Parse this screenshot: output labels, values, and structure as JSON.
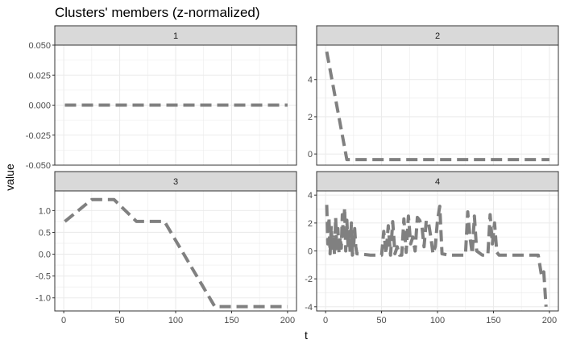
{
  "chart_data": {
    "type": "line",
    "title": "Clusters' members (z-normalized)",
    "xlabel": "t",
    "ylabel": "value",
    "xlim": [
      -8,
      208
    ],
    "x_ticks": [
      0,
      50,
      100,
      150,
      200
    ],
    "line_color": "#808080",
    "line_style": "dashed",
    "panel_border_color": "#333333",
    "strip_fill": "#d9d9d9",
    "grid_color": "#ebebeb",
    "panels": [
      {
        "label": "1",
        "ylim": [
          -0.05,
          0.05
        ],
        "y_ticks": [
          0.05,
          0.025,
          0.0,
          -0.025,
          -0.05
        ],
        "y_tick_labels": [
          "0.050",
          "0.025",
          "0.000",
          "-0.025",
          "-0.050"
        ],
        "x": [
          1,
          200
        ],
        "y": [
          0,
          0
        ]
      },
      {
        "label": "2",
        "ylim": [
          -0.6,
          5.85
        ],
        "y_ticks": [
          0,
          2,
          4
        ],
        "y_tick_labels": [
          "0",
          "2",
          "4"
        ],
        "x": [
          1,
          19,
          200
        ],
        "y": [
          5.5,
          -0.3,
          -0.3
        ]
      },
      {
        "label": "3",
        "ylim": [
          -1.3,
          1.45
        ],
        "y_ticks": [
          1.0,
          0.5,
          0.0,
          -0.5,
          -1.0
        ],
        "y_tick_labels": [
          "1.0",
          "0.5",
          "0.0",
          "-0.5",
          "-1.0"
        ],
        "x": [
          1,
          25,
          45,
          65,
          90,
          135,
          200
        ],
        "y": [
          0.75,
          1.25,
          1.25,
          0.75,
          0.75,
          -1.2,
          -1.2
        ]
      },
      {
        "label": "4",
        "ylim": [
          -4.3,
          4.3
        ],
        "y_ticks": [
          4,
          2,
          0,
          -2,
          -4
        ],
        "y_tick_labels": [
          "4",
          "2",
          "0",
          "-2",
          "-4"
        ],
        "x": [
          1,
          2,
          3,
          4,
          5,
          6,
          7,
          8,
          9,
          10,
          11,
          12,
          13,
          14,
          15,
          16,
          17,
          18,
          19,
          20,
          21,
          22,
          23,
          24,
          25,
          26,
          27,
          28,
          40,
          50,
          52,
          54,
          56,
          58,
          60,
          62,
          64,
          66,
          68,
          70,
          72,
          74,
          76,
          78,
          80,
          82,
          84,
          86,
          88,
          90,
          92,
          94,
          96,
          98,
          100,
          102,
          104,
          110,
          125,
          127,
          129,
          131,
          133,
          135,
          140,
          145,
          147,
          149,
          151,
          153,
          155,
          170,
          190,
          193,
          195,
          197
        ],
        "y": [
          3.3,
          0.5,
          2.4,
          -0.2,
          1.8,
          0.2,
          1.0,
          -0.3,
          2.4,
          0.0,
          1.6,
          -0.2,
          1.0,
          0.2,
          2.6,
          0.8,
          3.1,
          0.0,
          2.2,
          0.4,
          1.4,
          -0.2,
          2.0,
          -0.3,
          0.2,
          1.6,
          0.3,
          -0.2,
          -0.3,
          -0.3,
          1.4,
          -0.2,
          1.8,
          -0.3,
          2.1,
          -0.2,
          0.3,
          -0.3,
          -0.3,
          2.3,
          -0.1,
          2.5,
          0.5,
          1.0,
          0.0,
          2.4,
          2.2,
          1.8,
          0.3,
          2.2,
          2.0,
          1.0,
          -0.2,
          0.3,
          2.2,
          3.2,
          -0.2,
          -0.3,
          -0.3,
          2.8,
          1.0,
          -0.2,
          2.5,
          0.0,
          -0.3,
          -0.3,
          2.6,
          0.5,
          2.0,
          -0.1,
          -0.3,
          -0.3,
          -0.3,
          -1.8,
          -1.5,
          -4.0
        ]
      }
    ]
  }
}
